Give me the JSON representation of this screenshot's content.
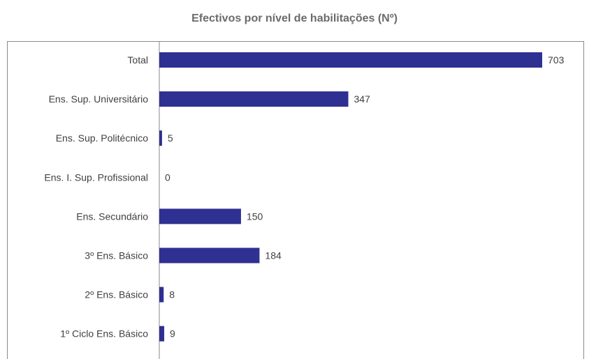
{
  "chart_data": {
    "type": "bar",
    "orientation": "horizontal",
    "title": "Efectivos por nível de habilitações (Nº)",
    "xlabel": "",
    "ylabel": "",
    "categories": [
      "Total",
      "Ens. Sup. Universitário",
      "Ens. Sup. Politécnico",
      "Ens. I. Sup. Profissional",
      "Ens. Secundário",
      "3º Ens. Básico",
      "2º Ens. Básico",
      "1º Ciclo Ens. Básico"
    ],
    "values": [
      703,
      347,
      5,
      0,
      150,
      184,
      8,
      9
    ],
    "xlim": [
      0,
      703
    ],
    "grid": false,
    "legend": "none",
    "bar_color": "#2E3092",
    "text_color": "#404040"
  }
}
